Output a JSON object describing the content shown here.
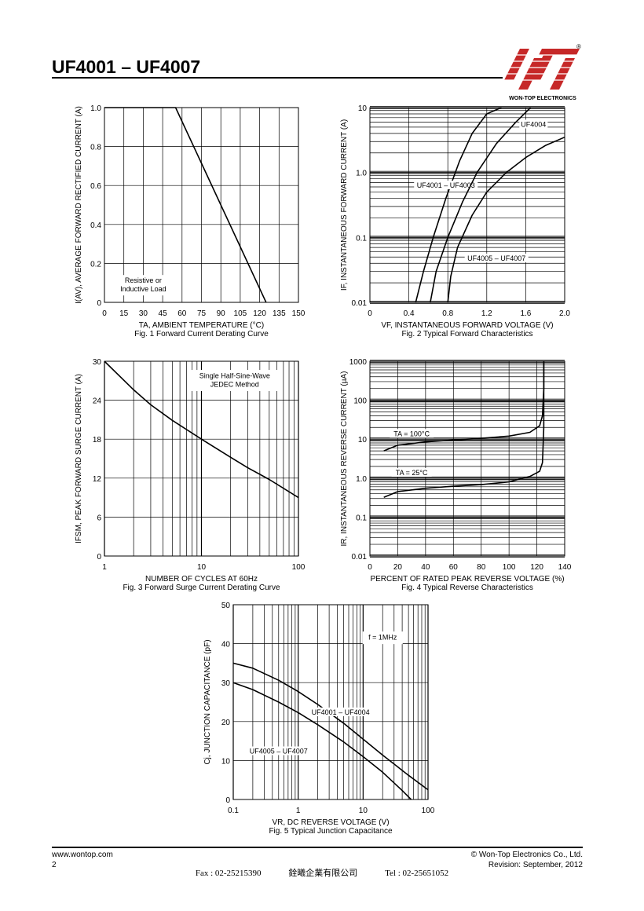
{
  "header": {
    "title": "UF4001 – UF4007",
    "company": "WON-TOP ELECTRONICS",
    "logo_registered": "®"
  },
  "footer": {
    "website": "www.wontop.com",
    "page": "2",
    "copyright": "© Won-Top Electronics Co., Ltd.",
    "revision": "Revision: September, 2012",
    "fax": "Fax : 02-25215390",
    "company_cn": "銓曦企業有限公司",
    "tel": "Tel : 02-25651052"
  },
  "colors": {
    "logo_red": "#c62828",
    "ink": "#000000"
  },
  "chart_data": [
    {
      "id": "fig1",
      "type": "line",
      "caption": "Fig. 1 Forward Current Derating Curve",
      "xlabel": "TA, AMBIENT TEMPERATURE (°C)",
      "ylabel": "I(AV), AVERAGE FORWARD RECTIFIED CURRENT (A)",
      "xscale": "linear",
      "yscale": "linear",
      "xlim": [
        0,
        150
      ],
      "ylim": [
        0,
        1.0
      ],
      "xticks": [
        0,
        15,
        30,
        45,
        60,
        75,
        90,
        105,
        120,
        135,
        150
      ],
      "xtick_labels": [
        "0",
        "15",
        "30",
        "45",
        "60",
        "75",
        "90",
        "105",
        "120",
        "135",
        "150"
      ],
      "yticks": [
        0,
        0.2,
        0.4,
        0.6,
        0.8,
        1.0
      ],
      "ytick_labels": [
        "0",
        "0.2",
        "0.4",
        "0.6",
        "0.8",
        "1.0"
      ],
      "grid": true,
      "annotations": [
        {
          "lines": [
            "Resistive or",
            "Inductive Load"
          ],
          "x": 30,
          "y": 0.1
        }
      ],
      "series": [
        {
          "x": [
            0,
            55,
            125
          ],
          "y": [
            1.0,
            1.0,
            0
          ]
        }
      ]
    },
    {
      "id": "fig2",
      "type": "line",
      "caption": "Fig. 2 Typical Forward Characteristics",
      "xlabel": "VF, INSTANTANEOUS FORWARD VOLTAGE (V)",
      "ylabel": "IF, INSTANTANEOUS FORWARD CURRENT (A)",
      "xscale": "linear",
      "yscale": "log",
      "xlim": [
        0,
        2.0
      ],
      "ylim": [
        0.01,
        10
      ],
      "xticks": [
        0,
        0.4,
        0.8,
        1.2,
        1.6,
        2.0
      ],
      "xtick_labels": [
        "0",
        "0.4",
        "0.8",
        "1.2",
        "1.6",
        "2.0"
      ],
      "yticks": [
        0.01,
        0.1,
        1,
        10
      ],
      "ytick_labels": [
        "0.01",
        "0.1",
        "1.0",
        "10"
      ],
      "grid": true,
      "annotations": [],
      "series": [
        {
          "name": "UF4001 – UF4003",
          "label_at": [
            0.78,
            0.6
          ],
          "x": [
            0.47,
            0.55,
            0.65,
            0.78,
            0.92,
            1.05,
            1.2,
            1.35
          ],
          "y": [
            0.01,
            0.03,
            0.1,
            0.4,
            1.5,
            4,
            8,
            10
          ]
        },
        {
          "name": "UF4004",
          "label_at": [
            1.68,
            5.2
          ],
          "x": [
            0.62,
            0.68,
            0.8,
            0.95,
            1.1,
            1.3,
            1.5,
            1.65
          ],
          "y": [
            0.01,
            0.03,
            0.1,
            0.35,
            1.0,
            2.8,
            6,
            10
          ]
        },
        {
          "name": "UF4005 – UF4007",
          "label_at": [
            1.3,
            0.045
          ],
          "x": [
            0.8,
            0.83,
            0.9,
            1.05,
            1.2,
            1.4,
            1.6,
            1.8,
            2.0
          ],
          "y": [
            0.01,
            0.025,
            0.07,
            0.22,
            0.5,
            1.0,
            1.7,
            2.6,
            3.5
          ]
        }
      ]
    },
    {
      "id": "fig3",
      "type": "line",
      "caption": "Fig. 3 Forward Surge Current Derating Curve",
      "xlabel": "NUMBER OF CYCLES AT 60Hz",
      "ylabel": "IFSM, PEAK FORWARD SURGE CURRENT (A)",
      "xscale": "log",
      "yscale": "linear",
      "xlim": [
        1,
        100
      ],
      "ylim": [
        0,
        30
      ],
      "xticks": [
        1,
        10,
        100
      ],
      "xtick_labels": [
        "1",
        "10",
        "100"
      ],
      "yticks": [
        0,
        6,
        12,
        18,
        24,
        30
      ],
      "ytick_labels": [
        "0",
        "6",
        "12",
        "18",
        "24",
        "30"
      ],
      "grid": true,
      "annotations": [
        {
          "lines": [
            "Single Half-Sine-Wave",
            "JEDEC Method"
          ],
          "x": 22,
          "y": 27.4,
          "boxed": true
        }
      ],
      "series": [
        {
          "x": [
            1,
            2,
            3,
            5,
            10,
            20,
            30,
            50,
            100
          ],
          "y": [
            30,
            25.6,
            23.3,
            20.9,
            18,
            15.2,
            13.6,
            11.8,
            9
          ]
        }
      ]
    },
    {
      "id": "fig4",
      "type": "line",
      "caption": "Fig. 4 Typical Reverse Characteristics",
      "xlabel": "PERCENT OF RATED PEAK REVERSE VOLTAGE (%)",
      "ylabel": "IR, INSTANTANEOUS REVERSE CURRENT (µA)",
      "xscale": "linear",
      "yscale": "log",
      "xlim": [
        0,
        140
      ],
      "ylim": [
        0.01,
        1000
      ],
      "xticks": [
        0,
        20,
        40,
        60,
        80,
        100,
        120,
        140
      ],
      "xtick_labels": [
        "0",
        "20",
        "40",
        "60",
        "80",
        "100",
        "120",
        "140"
      ],
      "yticks": [
        0.01,
        0.1,
        1,
        10,
        100,
        1000
      ],
      "ytick_labels": [
        "0.01",
        "0.1",
        "1.0",
        "10",
        "100",
        "1000"
      ],
      "grid": true,
      "annotations": [],
      "series": [
        {
          "name": "TA = 100°C",
          "label_at": [
            30,
            12.5
          ],
          "x": [
            10,
            20,
            40,
            60,
            80,
            100,
            115,
            122,
            124,
            125,
            125
          ],
          "y": [
            5,
            7,
            8.5,
            9.5,
            10.5,
            12,
            15,
            22,
            40,
            200,
            1000
          ]
        },
        {
          "name": "TA = 25°C",
          "label_at": [
            30,
            1.25
          ],
          "x": [
            10,
            20,
            40,
            60,
            80,
            100,
            115,
            122,
            124,
            125,
            125
          ],
          "y": [
            0.32,
            0.45,
            0.55,
            0.62,
            0.68,
            0.8,
            1.1,
            1.5,
            2.5,
            20,
            1000
          ]
        }
      ]
    },
    {
      "id": "fig5",
      "type": "line",
      "caption": "Fig. 5 Typical Junction Capacitance",
      "xlabel": "VR, DC REVERSE VOLTAGE (V)",
      "ylabel": "Cj, JUNCTION CAPACITANCE (pF)",
      "xscale": "log",
      "yscale": "linear",
      "xlim": [
        0.1,
        100
      ],
      "ylim": [
        0,
        50
      ],
      "xticks": [
        0.1,
        1,
        10,
        100
      ],
      "xtick_labels": [
        "0.1",
        "1",
        "10",
        "100"
      ],
      "yticks": [
        0,
        10,
        20,
        30,
        40,
        50
      ],
      "ytick_labels": [
        "0",
        "10",
        "20",
        "30",
        "40",
        "50"
      ],
      "grid": true,
      "annotations": [
        {
          "lines": [
            "f = 1MHz"
          ],
          "x": 20,
          "y": 41,
          "boxed": true
        }
      ],
      "series": [
        {
          "name": "UF4001 – UF4004",
          "label_at": [
            4.5,
            22
          ],
          "x": [
            0.1,
            0.2,
            0.5,
            1,
            2,
            5,
            10,
            20,
            50,
            100
          ],
          "y": [
            35,
            33.7,
            30.6,
            27.7,
            24.4,
            19.6,
            15.5,
            11.4,
            6.2,
            2.5
          ]
        },
        {
          "name": "UF4005 – UF4007",
          "label_at": [
            0.5,
            12
          ],
          "x": [
            0.1,
            0.2,
            0.5,
            1,
            2,
            5,
            10,
            20,
            40,
            55
          ],
          "y": [
            30,
            28.2,
            25,
            22.3,
            19.2,
            14.8,
            11,
            7,
            2.3,
            0
          ]
        }
      ]
    }
  ]
}
